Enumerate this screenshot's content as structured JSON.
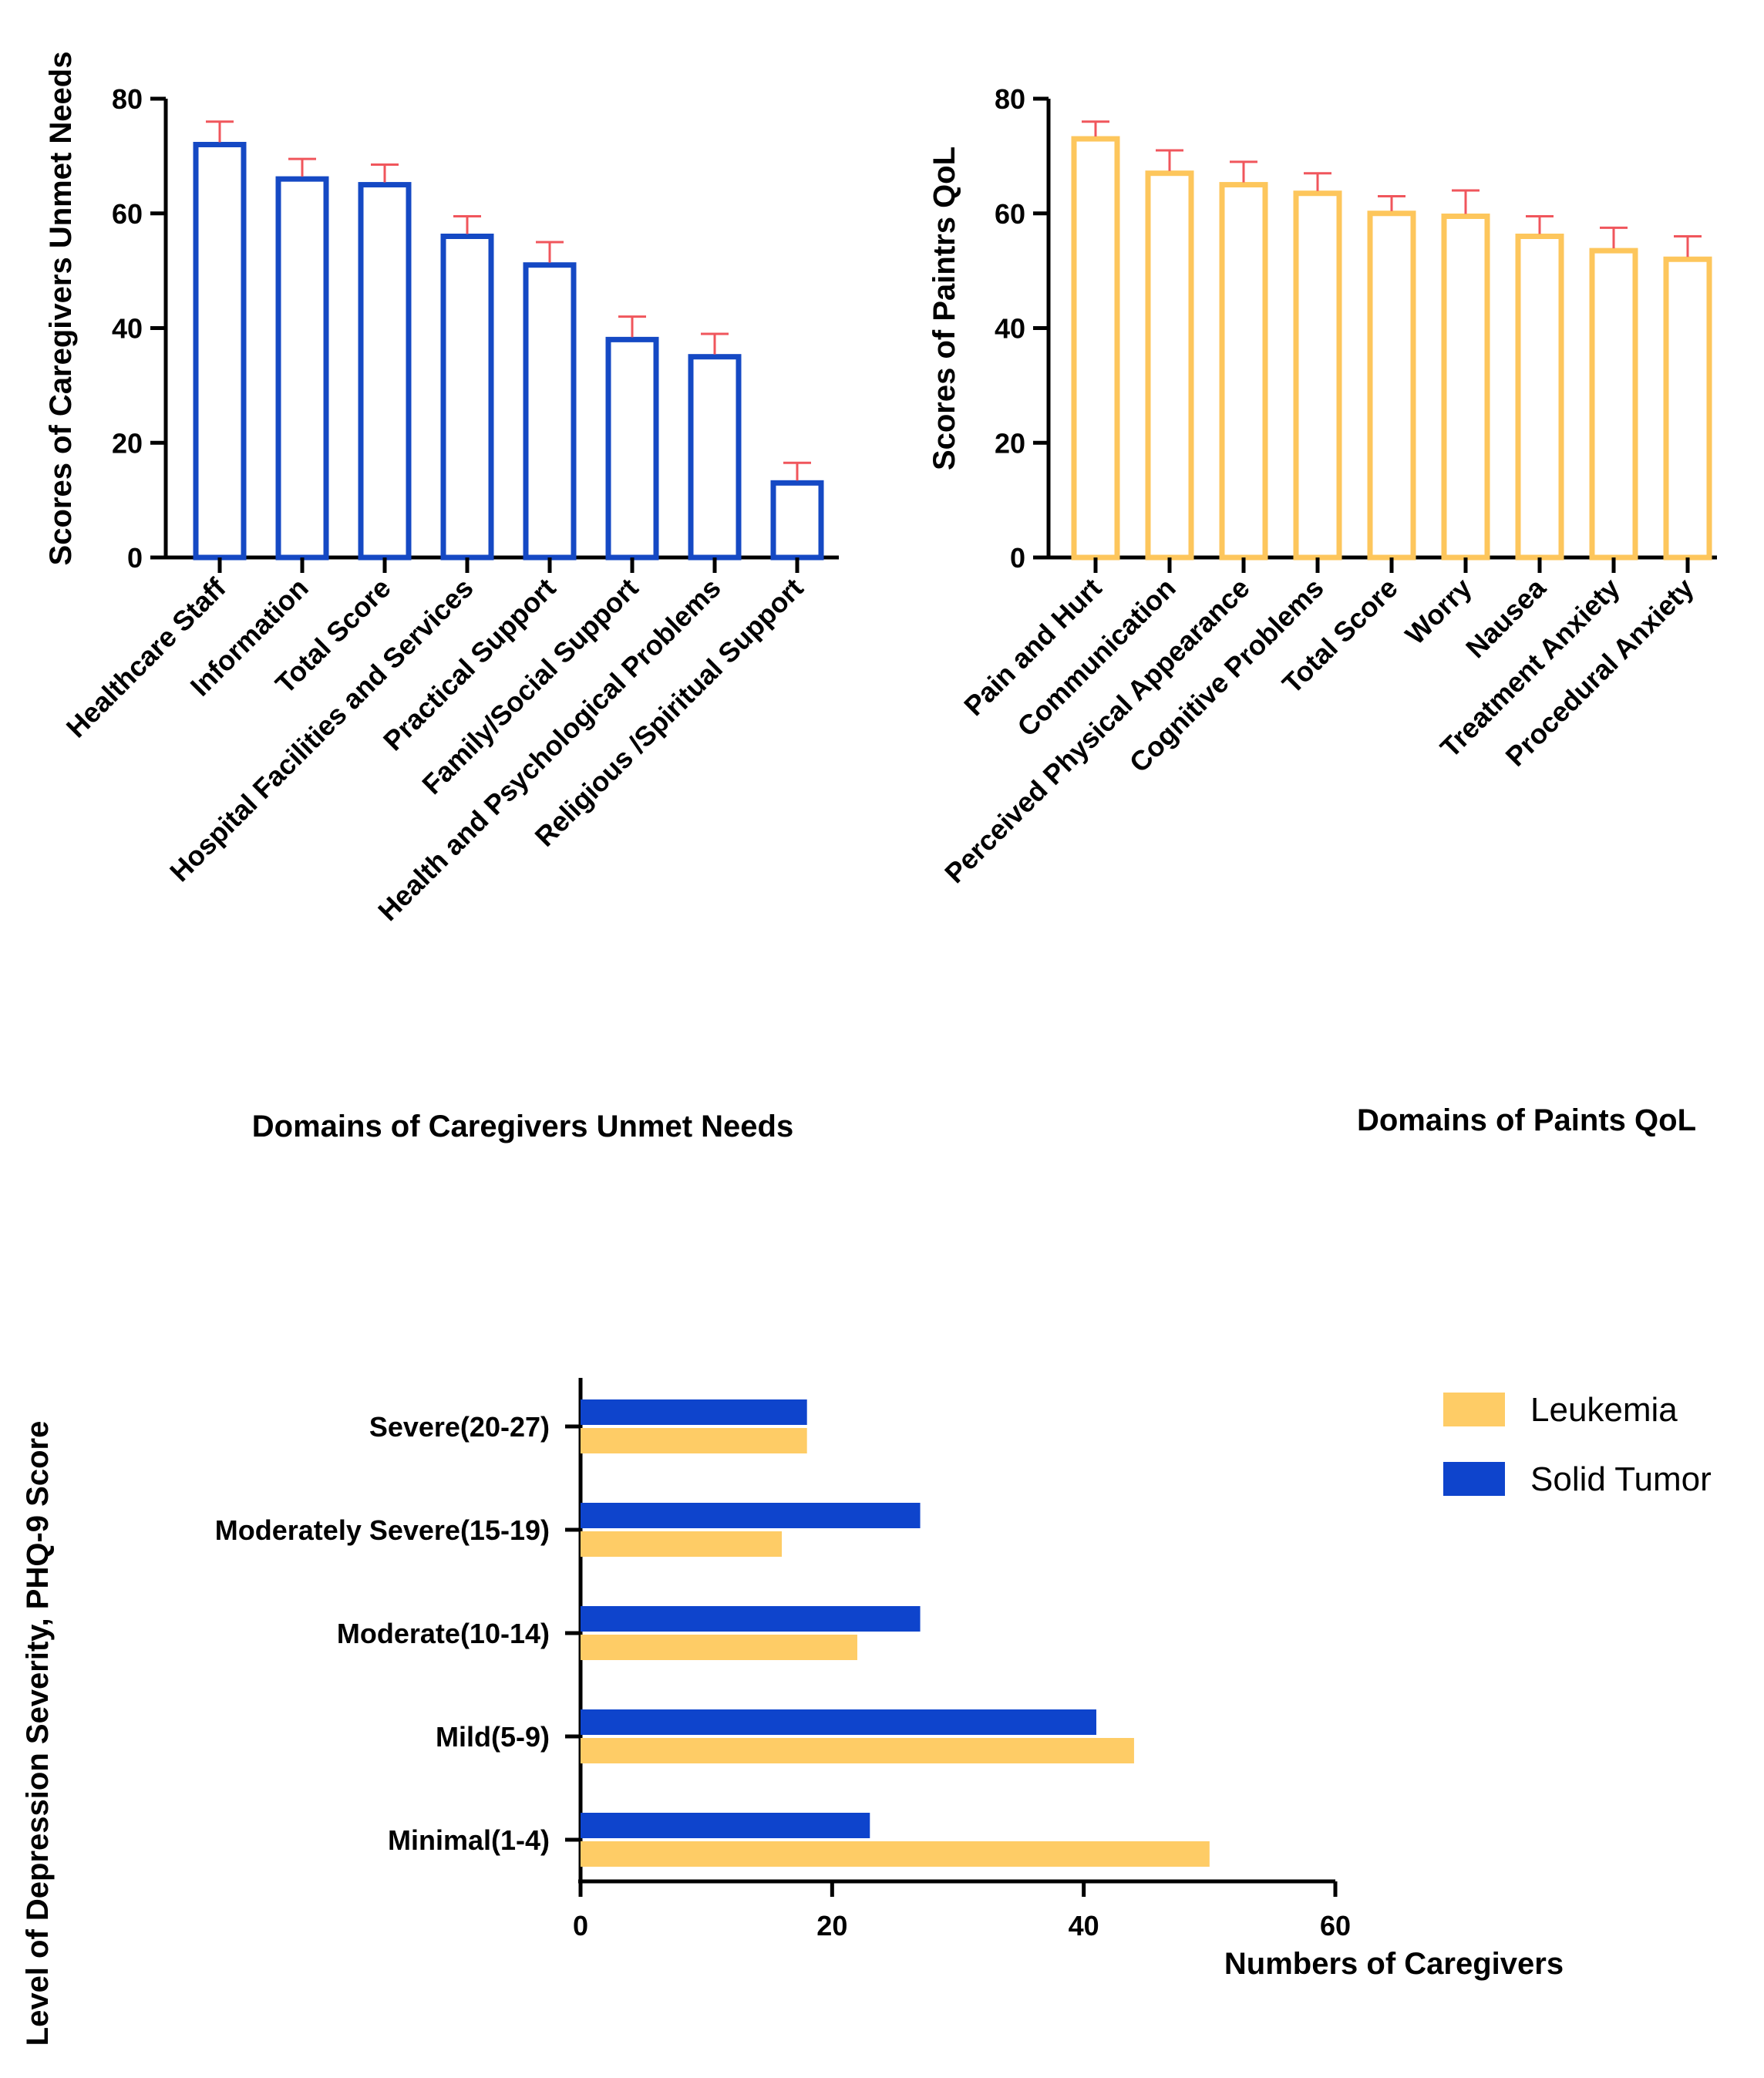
{
  "chart_data": [
    {
      "type": "bar",
      "orientation": "vertical",
      "title": "",
      "xlabel": "Domains of Caregivers Unmet Needs",
      "ylabel": "Scores of Caregivers Unmet Needs",
      "ylim": [
        0,
        80
      ],
      "yticks": [
        0,
        20,
        40,
        60,
        80
      ],
      "categories": [
        "Healthcare Staff",
        "Information",
        "Total Score",
        "Hospital Facilities and Services",
        "Practical Support",
        "Family/Social Support",
        "Health and Psychological Problems",
        "Religious /Spiritual Support"
      ],
      "values": [
        72,
        66,
        65,
        56,
        51,
        38,
        35,
        13
      ],
      "error_upper": [
        76,
        69.5,
        68.5,
        59.5,
        55,
        42,
        39,
        16.5
      ],
      "bar_color": "#1549C4",
      "error_color": "#F0565C",
      "grid": false
    },
    {
      "type": "bar",
      "orientation": "vertical",
      "title": "",
      "xlabel": "Domains of Paints QoL",
      "ylabel": "Scores of Paintrs QoL",
      "ylim": [
        0,
        80
      ],
      "yticks": [
        0,
        20,
        40,
        60,
        80
      ],
      "categories": [
        "Pain and Hurt",
        "Communication",
        "Perceived Physical Appearance",
        "Cognitive Problems",
        "Total Score",
        "Worry",
        "Nausea",
        "Treatment Anxiety",
        "Procedural Anxiety"
      ],
      "values": [
        73,
        67,
        65,
        63.5,
        60,
        59.5,
        56,
        53.5,
        52
      ],
      "error_upper": [
        76,
        71,
        69,
        67,
        63,
        64,
        59.5,
        57.5,
        56
      ],
      "bar_color": "#FDC65C",
      "error_color": "#F0565C",
      "grid": false
    },
    {
      "type": "bar",
      "orientation": "horizontal",
      "title": "",
      "xlabel": "Numbers of Caregivers",
      "ylabel": "Level of Depression Severity, PHQ-9 Score",
      "xlim": [
        0,
        60
      ],
      "xticks": [
        0,
        20,
        40,
        60
      ],
      "categories": [
        "Severe(20-27)",
        "Moderately Severe(15-19)",
        "Moderate(10-14)",
        "Mild(5-9)",
        "Minimal(1-4)"
      ],
      "series": [
        {
          "name": "Leukemia",
          "color": "#FECC66",
          "values": [
            18,
            16,
            22,
            44,
            50
          ]
        },
        {
          "name": "Solid Tumor",
          "color": "#0E44CC",
          "values": [
            18,
            27,
            27,
            41,
            23
          ]
        }
      ],
      "legend_position": "top-right",
      "grid": false
    }
  ]
}
